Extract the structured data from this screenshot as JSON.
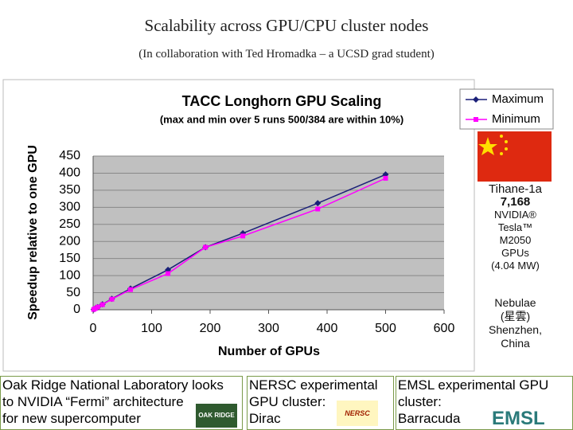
{
  "slide": {
    "title": "Scalability across GPU/CPU cluster nodes",
    "subtitle": "(In collaboration with Ted Hromadka – a UCSD grad student)"
  },
  "chart_data": {
    "type": "line",
    "title": "TACC Longhorn GPU Scaling",
    "subtitle": "(max and min over 5 runs 500/384 are within 10%)",
    "x_label": "Number of GPUs",
    "y_label": "Speedup relative to one GPU",
    "x": [
      1,
      4,
      8,
      16,
      32,
      64,
      128,
      192,
      256,
      384,
      500
    ],
    "series": [
      {
        "name": "Maximum",
        "color": "#1a1f78",
        "marker": "diamond",
        "values": [
          1,
          4,
          8,
          16,
          32,
          62,
          117,
          183,
          224,
          312,
          396
        ]
      },
      {
        "name": "Minimum",
        "color": "#ff00ff",
        "marker": "square",
        "values": [
          1,
          4,
          8,
          15,
          31,
          59,
          106,
          183,
          216,
          295,
          385
        ]
      }
    ],
    "xlim": [
      0,
      600
    ],
    "xticks": [
      0,
      100,
      200,
      300,
      400,
      500,
      600
    ],
    "ylim": [
      0,
      450
    ],
    "yticks": [
      0,
      50,
      100,
      150,
      200,
      250,
      300,
      350,
      400,
      450
    ],
    "grid": true,
    "legend": "top-right"
  },
  "side": {
    "tianhe": [
      "Tihane-1a",
      "7,168",
      "NVIDIA®",
      "Tesla™",
      "M2050",
      "GPUs",
      "(4.04 MW)"
    ],
    "nebulae": [
      "Nebulae",
      "(星雲)",
      "Shenzhen,",
      "China"
    ]
  },
  "bottom": [
    {
      "lines": [
        "Oak Ridge National Laboratory looks",
        "to NVIDIA “Fermi” architecture",
        "for new supercomputer"
      ],
      "logo": "OAK RIDGE"
    },
    {
      "lines": [
        "NERSC experimental",
        "GPU cluster:",
        "Dirac"
      ],
      "logo": "NERSC"
    },
    {
      "lines": [
        "EMSL experimental GPU",
        "cluster:",
        "Barracuda"
      ],
      "logo": "EMSL"
    }
  ]
}
